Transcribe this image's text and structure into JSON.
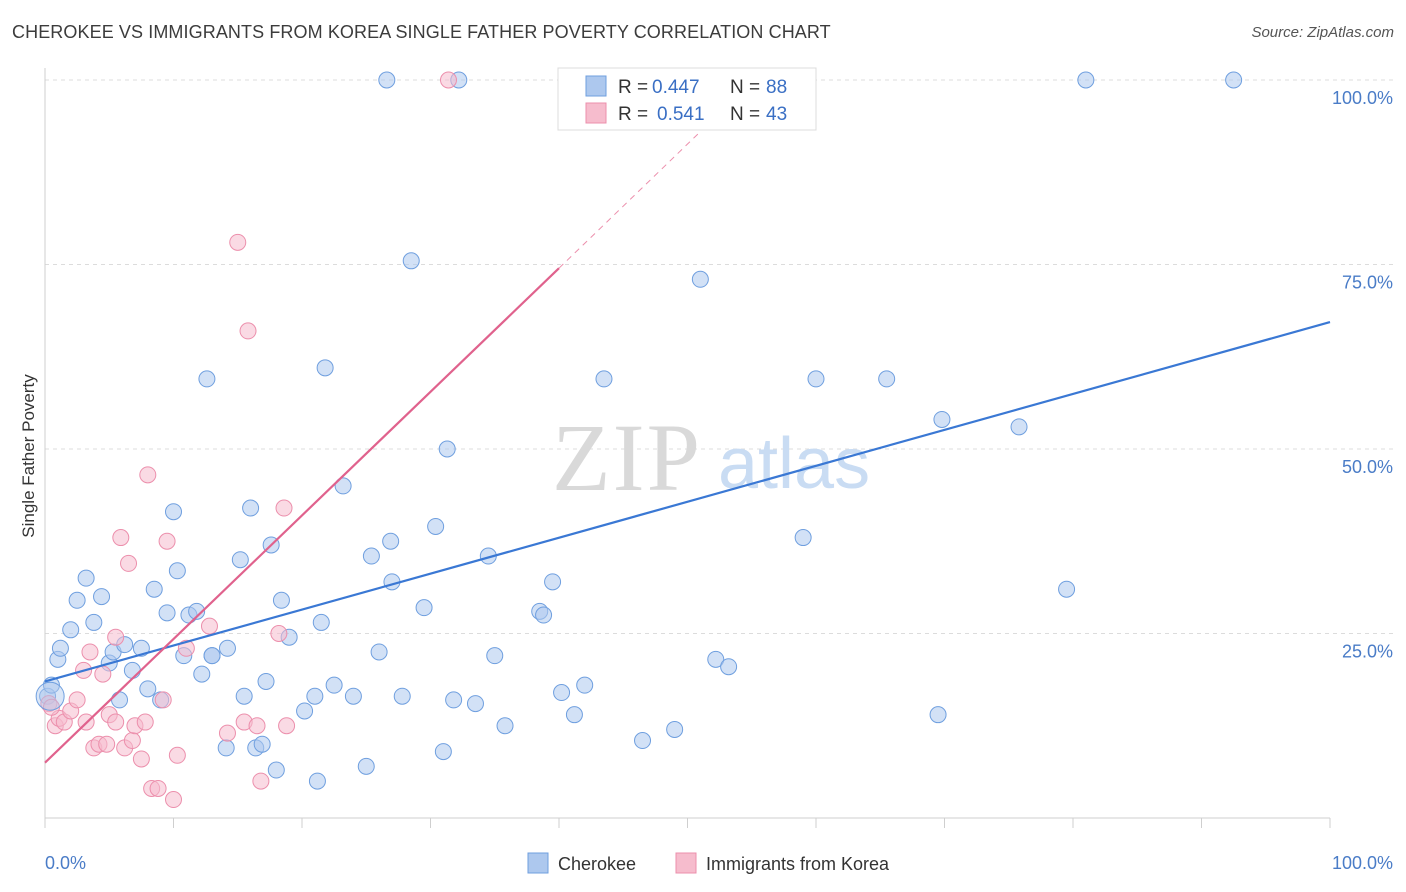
{
  "title": "CHEROKEE VS IMMIGRANTS FROM KOREA SINGLE FATHER POVERTY CORRELATION CHART",
  "source": "Source: ZipAtlas.com",
  "watermark": {
    "zip": "ZIP",
    "atlas": "atlas"
  },
  "colors": {
    "cherokee_fill": "#adc8ee",
    "cherokee_stroke": "#6f9fdf",
    "cherokee_line": "#3a78d4",
    "korea_fill": "#f6bccd",
    "korea_stroke": "#ec8fac",
    "korea_line": "#e0628d",
    "tick_text": "#4a7cc7",
    "grid": "#dcdcdc"
  },
  "stats_box": {
    "rows": [
      {
        "r_label": "R =",
        "r_value": "0.447",
        "n_label": "N =",
        "n_value": "88",
        "series": "cherokee"
      },
      {
        "r_label": "R =",
        "r_value": "0.541",
        "n_label": "N =",
        "n_value": "43",
        "series": "korea"
      }
    ]
  },
  "chart_data": {
    "type": "scatter",
    "title": "CHEROKEE VS IMMIGRANTS FROM KOREA SINGLE FATHER POVERTY CORRELATION CHART",
    "xlabel": "",
    "ylabel": "Single Father Poverty",
    "xlim": [
      0,
      100
    ],
    "ylim": [
      0,
      100
    ],
    "x_tick_labels": [
      "0.0%",
      "100.0%"
    ],
    "y_ticks": [
      25,
      50,
      75,
      100
    ],
    "y_tick_labels": [
      "25.0%",
      "50.0%",
      "75.0%",
      "100.0%"
    ],
    "grid": true,
    "legend_position": "bottom-center",
    "series": [
      {
        "name": "Cherokee",
        "color": "#adc8ee",
        "R": 0.447,
        "N": 88,
        "trend": {
          "x": [
            0,
            100
          ],
          "y": [
            18.5,
            67.2
          ]
        },
        "points": [
          [
            0.2,
            16.5
          ],
          [
            0.5,
            18
          ],
          [
            1,
            21.5
          ],
          [
            1.2,
            23
          ],
          [
            2,
            25.5
          ],
          [
            2.5,
            29.5
          ],
          [
            3.2,
            32.5
          ],
          [
            3.8,
            26.5
          ],
          [
            4.4,
            30
          ],
          [
            5,
            21
          ],
          [
            5.3,
            22.5
          ],
          [
            5.8,
            16
          ],
          [
            6.2,
            23.5
          ],
          [
            6.8,
            20
          ],
          [
            7.5,
            23
          ],
          [
            8,
            17.5
          ],
          [
            8.5,
            31
          ],
          [
            9,
            16
          ],
          [
            9.5,
            27.8
          ],
          [
            10,
            41.5
          ],
          [
            10.3,
            33.5
          ],
          [
            10.8,
            22
          ],
          [
            11.2,
            27.5
          ],
          [
            11.8,
            28
          ],
          [
            12.2,
            19.5
          ],
          [
            12.6,
            59.5
          ],
          [
            13,
            22
          ],
          [
            14.2,
            23
          ],
          [
            14.1,
            9.5
          ],
          [
            15.2,
            35
          ],
          [
            15.5,
            16.5
          ],
          [
            16,
            42
          ],
          [
            16.4,
            9.5
          ],
          [
            16.9,
            10
          ],
          [
            17.2,
            18.5
          ],
          [
            17.6,
            37
          ],
          [
            18,
            6.5
          ],
          [
            18.4,
            29.5
          ],
          [
            19,
            24.5
          ],
          [
            20.2,
            14.5
          ],
          [
            21,
            16.5
          ],
          [
            21.5,
            26.5
          ],
          [
            21.8,
            61
          ],
          [
            22.5,
            18
          ],
          [
            23.2,
            45
          ],
          [
            24,
            16.5
          ],
          [
            25,
            7
          ],
          [
            25.4,
            35.5
          ],
          [
            26,
            22.5
          ],
          [
            26.6,
            100
          ],
          [
            26.9,
            37.5
          ],
          [
            27.8,
            16.5
          ],
          [
            28.5,
            75.5
          ],
          [
            29.5,
            28.5
          ],
          [
            30.4,
            39.5
          ],
          [
            31,
            9
          ],
          [
            31.3,
            50
          ],
          [
            31.8,
            16
          ],
          [
            32.2,
            100
          ],
          [
            33.5,
            15.5
          ],
          [
            34.5,
            35.5
          ],
          [
            35,
            22
          ],
          [
            35.8,
            12.5
          ],
          [
            38.5,
            28
          ],
          [
            38.8,
            27.5
          ],
          [
            39.5,
            32
          ],
          [
            40.2,
            17
          ],
          [
            41.2,
            14
          ],
          [
            42,
            18
          ],
          [
            43.5,
            59.5
          ],
          [
            46.5,
            10.5
          ],
          [
            49,
            12
          ],
          [
            51,
            73
          ],
          [
            52.2,
            21.5
          ],
          [
            53.2,
            20.5
          ],
          [
            55,
            100
          ],
          [
            59,
            38
          ],
          [
            60,
            59.5
          ],
          [
            65.5,
            59.5
          ],
          [
            69.5,
            14
          ],
          [
            69.8,
            54
          ],
          [
            75.8,
            53
          ],
          [
            79.5,
            31
          ],
          [
            81,
            100
          ],
          [
            92.5,
            100
          ],
          [
            21.2,
            5
          ],
          [
            13,
            22
          ],
          [
            27,
            32
          ]
        ]
      },
      {
        "name": "Immigrants from Korea",
        "color": "#f6bccd",
        "R": 0.541,
        "N": 43,
        "trend": {
          "x": [
            0,
            40
          ],
          "y": [
            7.5,
            74.5
          ]
        },
        "trend_extension": {
          "x": [
            40,
            51
          ],
          "y": [
            74.5,
            93
          ]
        },
        "points": [
          [
            0.3,
            15.5
          ],
          [
            0.8,
            12.5
          ],
          [
            1.1,
            13.5
          ],
          [
            1.5,
            13
          ],
          [
            2,
            14.5
          ],
          [
            2.5,
            16
          ],
          [
            3,
            20
          ],
          [
            3.2,
            13
          ],
          [
            3.5,
            22.5
          ],
          [
            3.8,
            9.5
          ],
          [
            4.2,
            10
          ],
          [
            4.5,
            19.5
          ],
          [
            4.8,
            10
          ],
          [
            5,
            14
          ],
          [
            5.5,
            13
          ],
          [
            5.5,
            24.5
          ],
          [
            5.9,
            38
          ],
          [
            6.2,
            9.5
          ],
          [
            6.5,
            34.5
          ],
          [
            6.8,
            10.5
          ],
          [
            7,
            12.5
          ],
          [
            7.5,
            8
          ],
          [
            7.8,
            13
          ],
          [
            8,
            46.5
          ],
          [
            8.3,
            4
          ],
          [
            8.8,
            4
          ],
          [
            9.2,
            16
          ],
          [
            9.5,
            37.5
          ],
          [
            10,
            2.5
          ],
          [
            10.3,
            8.5
          ],
          [
            11,
            23
          ],
          [
            12.8,
            26
          ],
          [
            14.2,
            11.5
          ],
          [
            15,
            78
          ],
          [
            15.5,
            13
          ],
          [
            16.5,
            12.5
          ],
          [
            16.8,
            5
          ],
          [
            18.2,
            25
          ],
          [
            18.6,
            42
          ],
          [
            18.8,
            12.5
          ],
          [
            15.8,
            66
          ],
          [
            31.4,
            100
          ],
          [
            0.5,
            15
          ]
        ]
      }
    ]
  },
  "legend": {
    "items": [
      {
        "label": "Cherokee",
        "series": "cherokee"
      },
      {
        "label": "Immigrants from Korea",
        "series": "korea"
      }
    ]
  }
}
